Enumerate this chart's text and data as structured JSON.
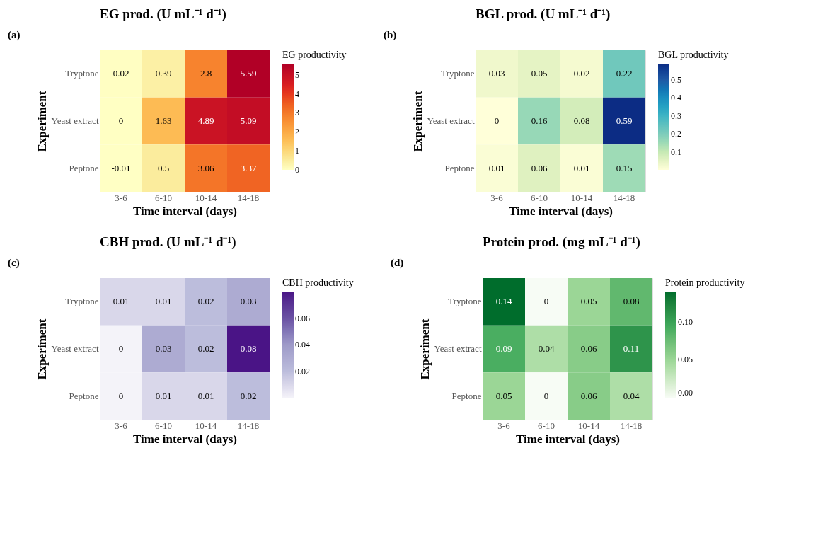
{
  "chart_data": [
    {
      "type": "heatmap",
      "title": "EG prod. (U mL⁻¹ d⁻¹)",
      "annotations": [
        "(a)"
      ],
      "xlabel": "Time interval (days)",
      "ylabel": "Experiment",
      "clabel": "EG productivity",
      "categories": [
        "3-6",
        "6-10",
        "10-14",
        "14-18"
      ],
      "y_categories": [
        "Tryptone",
        "Yeast extract",
        "Peptone"
      ],
      "cells": [
        [
          0.02,
          0.39,
          2.8,
          5.59
        ],
        [
          0,
          1.63,
          4.89,
          5.09
        ],
        [
          -0.01,
          0.5,
          3.06,
          3.37
        ]
      ],
      "clim": [
        -0.01,
        5.59
      ],
      "cticks": [
        0,
        1,
        2,
        3,
        4,
        5
      ],
      "colors": [
        "#ffffc4",
        "#fec55e",
        "#f7842e",
        "#e3251e",
        "#b10026"
      ],
      "data_labels": true
    },
    {
      "type": "heatmap",
      "title": "BGL prod. (U mL⁻¹ d⁻¹)",
      "annotations": [
        "(b)"
      ],
      "xlabel": "Time interval (days)",
      "ylabel": "Experiment",
      "clabel": "BGL productivity",
      "categories": [
        "3-6",
        "6-10",
        "10-14",
        "14-18"
      ],
      "y_categories": [
        "Tryptone",
        "Yeast extract",
        "Peptone"
      ],
      "cells": [
        [
          0.03,
          0.05,
          0.02,
          0.22
        ],
        [
          0,
          0.16,
          0.08,
          0.59
        ],
        [
          0.01,
          0.06,
          0.01,
          0.15
        ]
      ],
      "clim": [
        0,
        0.59
      ],
      "cticks": [
        0.1,
        0.2,
        0.3,
        0.4,
        0.5
      ],
      "colors": [
        "#ffffd9",
        "#c7e9b4",
        "#7fcdbb",
        "#41b6c4",
        "#1d91c0",
        "#225ea8",
        "#0c2c84"
      ],
      "data_labels": true
    },
    {
      "type": "heatmap",
      "title": "CBH prod. (U mL⁻¹ d⁻¹)",
      "annotations": [
        "(c)"
      ],
      "xlabel": "Time interval (days)",
      "ylabel": "Experiment",
      "clabel": "CBH productivity",
      "categories": [
        "3-6",
        "6-10",
        "10-14",
        "14-18"
      ],
      "y_categories": [
        "Tryptone",
        "Yeast extract",
        "Peptone"
      ],
      "cells": [
        [
          0.01,
          0.01,
          0.02,
          0.03
        ],
        [
          0,
          0.03,
          0.02,
          0.08
        ],
        [
          0,
          0.01,
          0.01,
          0.02
        ]
      ],
      "clim": [
        0,
        0.08
      ],
      "cticks": [
        0.02,
        0.04,
        0.06
      ],
      "colors": [
        "#f4f3f9",
        "#bcbddc",
        "#9e9ac8",
        "#6a51a3",
        "#4a1486"
      ],
      "data_labels": true
    },
    {
      "type": "heatmap",
      "title": "Protein prod. (mg mL⁻¹ d⁻¹)",
      "annotations": [
        "(d)"
      ],
      "xlabel": "Time interval (days)",
      "ylabel": "Experiment",
      "clabel": "Protein productivity",
      "categories": [
        "3-6",
        "6-10",
        "10-14",
        "14-18"
      ],
      "y_categories": [
        "Tryptone",
        "Yeast extract",
        "Peptone"
      ],
      "cells": [
        [
          0.14,
          0,
          0.05,
          0.08
        ],
        [
          0.09,
          0.04,
          0.06,
          0.11
        ],
        [
          0.05,
          0,
          0.06,
          0.04
        ]
      ],
      "clim": [
        0,
        0.14
      ],
      "cticks": [
        {
          "value": 0,
          "label": "0.00"
        },
        {
          "value": 0.05,
          "label": "0.05"
        },
        {
          "value": 0.1,
          "label": "0.10"
        }
      ],
      "colors": [
        "#f7fcf5",
        "#a1d99b",
        "#41ab5d",
        "#006d2c"
      ],
      "data_labels": true
    }
  ]
}
